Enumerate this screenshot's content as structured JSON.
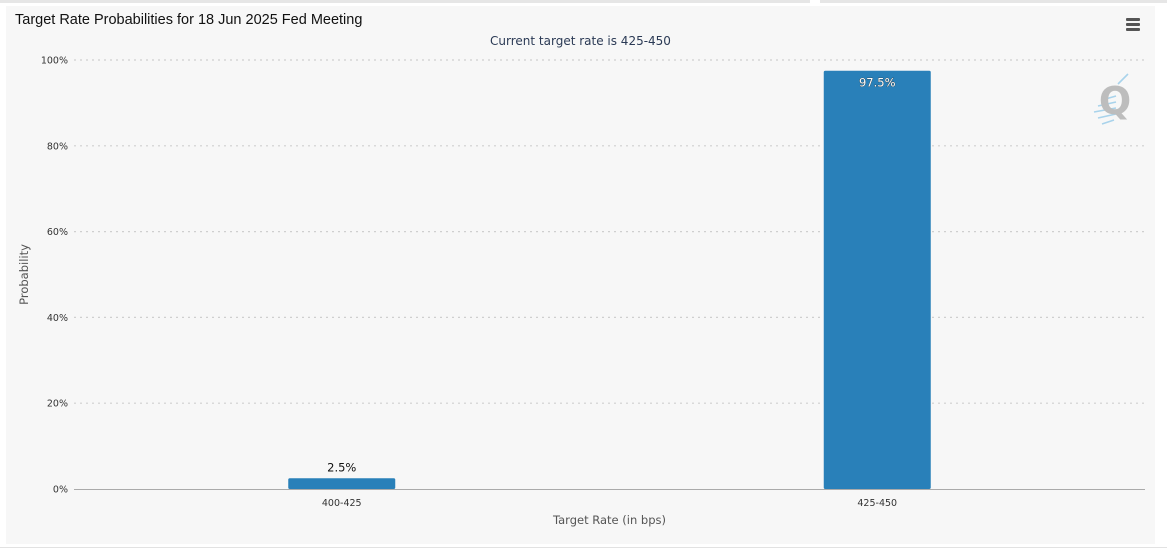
{
  "chart_data": {
    "type": "bar",
    "title": "Target Rate Probabilities for 18 Jun 2025 Fed Meeting",
    "subtitle": "Current target rate is 425-450",
    "xlabel": "Target Rate (in bps)",
    "ylabel": "Probability",
    "categories": [
      "400-425",
      "425-450"
    ],
    "values": [
      2.5,
      97.5
    ],
    "data_labels": [
      "2.5%",
      "97.5%"
    ],
    "ylim": [
      0,
      100
    ],
    "yticks": [
      0,
      20,
      40,
      60,
      80,
      100
    ],
    "ytick_labels": [
      "0%",
      "20%",
      "40%",
      "60%",
      "80%",
      "100%"
    ],
    "grid": true,
    "legend": "none",
    "bar_color": "#2980b9"
  },
  "menu": {
    "icon": "hamburger-menu-icon"
  },
  "logo": {
    "icon": "quikstrike-q-logo"
  }
}
